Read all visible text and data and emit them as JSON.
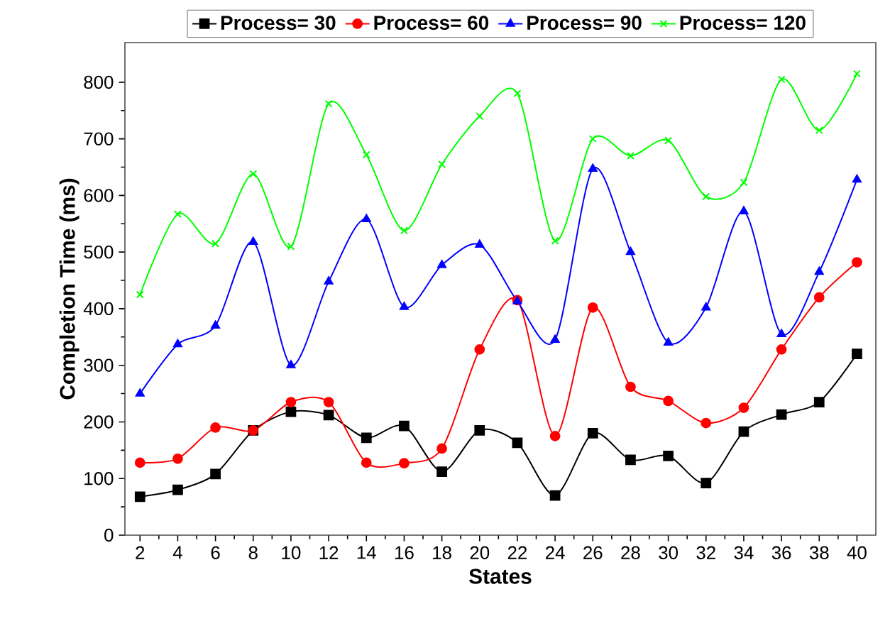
{
  "chart_data": {
    "type": "line",
    "xlabel": "States",
    "ylabel": "Completion Time (ms)",
    "x": [
      2,
      4,
      6,
      8,
      10,
      12,
      14,
      16,
      18,
      20,
      22,
      24,
      26,
      28,
      30,
      32,
      34,
      36,
      38,
      40
    ],
    "xlim": [
      1.2,
      41
    ],
    "xticks": [
      2,
      4,
      6,
      8,
      10,
      12,
      14,
      16,
      18,
      20,
      22,
      24,
      26,
      28,
      30,
      32,
      34,
      36,
      38,
      40
    ],
    "ylim": [
      0,
      870
    ],
    "yticks": [
      0,
      100,
      200,
      300,
      400,
      500,
      600,
      700,
      800
    ],
    "legend": "top",
    "grid": false,
    "line_style": "solid",
    "series": [
      {
        "name": "Process= 30",
        "color": "#000000",
        "marker": "square",
        "values": [
          68,
          80,
          108,
          185,
          218,
          212,
          172,
          193,
          112,
          185,
          163,
          70,
          180,
          133,
          140,
          92,
          183,
          213,
          235,
          320
        ]
      },
      {
        "name": "Process= 60",
        "color": "#ff0000",
        "marker": "circle",
        "values": [
          128,
          135,
          190,
          185,
          235,
          235,
          128,
          127,
          153,
          328,
          415,
          175,
          402,
          262,
          237,
          198,
          225,
          328,
          420,
          482
        ]
      },
      {
        "name": "Process= 90",
        "color": "#0000ff",
        "marker": "triangle",
        "values": [
          250,
          337,
          370,
          518,
          300,
          448,
          558,
          403,
          477,
          513,
          413,
          345,
          647,
          500,
          340,
          402,
          572,
          355,
          465,
          628
        ]
      },
      {
        "name": "Process= 120",
        "color": "#00ff00",
        "marker": "cross",
        "values": [
          425,
          567,
          515,
          638,
          510,
          762,
          672,
          538,
          655,
          740,
          780,
          520,
          700,
          670,
          697,
          598,
          623,
          805,
          715,
          815
        ]
      }
    ]
  }
}
